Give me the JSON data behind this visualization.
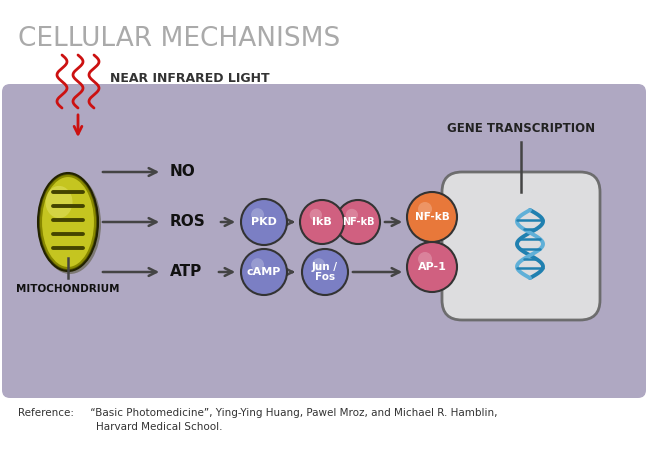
{
  "title": "CELLULAR MECHANISMS",
  "title_color": "#aaaaaa",
  "bg_color": "#ffffff",
  "panel_color": "#9b92b3",
  "nir_label": "NEAR INFRARED LIGHT",
  "no_label": "NO",
  "ros_label": "ROS",
  "atp_label": "ATP",
  "mito_label": "MITOCHONDRIUM",
  "gene_label": "GENE TRANSCRIPTION",
  "reference_line1": "Reference:     “Basic Photomedicine”, Ying-Ying Huang, Pawel Mroz, and Michael R. Hamblin,",
  "reference_line2": "                        Harvard Medical School.",
  "pkd_label": "PKD",
  "ikb_label": "IkB",
  "nfkb1_label": "NF-kB",
  "nfkb2_label": "NF-kB",
  "camp_label": "cAMP",
  "junfos_label": "Jun /\nFos",
  "ap1_label": "AP-1",
  "circle_colors": {
    "pkd": "#7b7fc4",
    "ikb": "#d06080",
    "nfkb1": "#d06080",
    "nfkb2": "#e8783a",
    "camp": "#7b7fc4",
    "junfos": "#7b7fc4",
    "ap1": "#d06080"
  },
  "arrow_color": "#444444",
  "nir_color": "#cc1111",
  "dna_color1": "#2080b0",
  "dna_color2": "#60b0d8",
  "nucleus_color": "#e2e2e2",
  "label_color": "#111111"
}
